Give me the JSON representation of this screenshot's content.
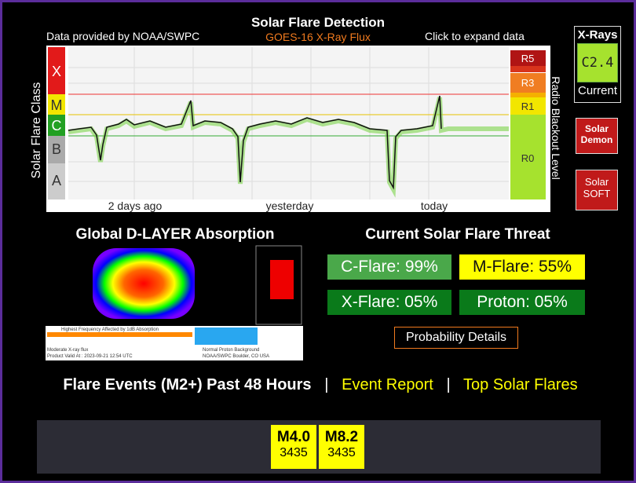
{
  "header": {
    "title": "Solar Flare Detection",
    "source": "Data provided by NOAA/SWPC",
    "subtitle": "GOES-16 X-Ray Flux",
    "expand": "Click to expand data"
  },
  "chart": {
    "y_label": "Solar Flare Class",
    "classes": [
      "X",
      "M",
      "C",
      "B",
      "A"
    ],
    "blackout_levels": [
      "R5",
      "R3",
      "R1",
      "R0"
    ],
    "blackout_label": "Radio Blackout Level",
    "x_labels": [
      "2 days ago",
      "yesterday",
      "today"
    ]
  },
  "current": {
    "label": "X-Rays",
    "value": "C2.4",
    "caption": "Current"
  },
  "buttons": [
    {
      "line1": "Solar",
      "line2": "Demon"
    },
    {
      "line1": "Solar",
      "line2": "SOFT"
    }
  ],
  "absorption": {
    "title": "Global D-LAYER Absorption",
    "legend": "Highest Frequency Affected by 1dB Absorption",
    "status": "Moderate X-ray flux",
    "valid": "Product Valid At : 2023-09-21 12:54 UTC",
    "proton": "Normal Proton Background",
    "office": "NOAA/SWPC Boulder, CO USA"
  },
  "threat": {
    "title": "Current Solar Flare Threat",
    "items": [
      "C-Flare: 99%",
      "M-Flare: 55%",
      "X-Flare: 05%",
      "Proton: 05%"
    ],
    "details": "Probability Details"
  },
  "events": {
    "title": "Flare Events (M2+) Past 48 Hours",
    "sep": "|",
    "report": "Event Report",
    "top": "Top Solar Flares",
    "rows": [
      {
        "class": "M4.0",
        "region": "3435"
      },
      {
        "class": "M8.2",
        "region": "3435"
      }
    ]
  }
}
